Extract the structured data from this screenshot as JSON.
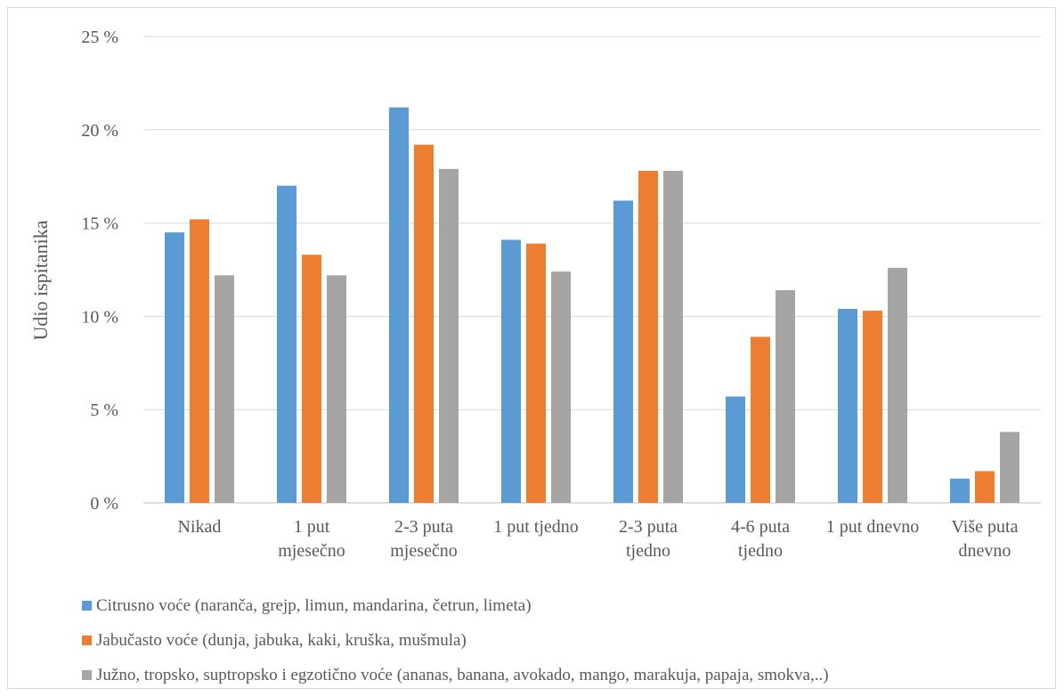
{
  "chart_data": {
    "type": "bar",
    "title": "",
    "xlabel": "",
    "ylabel": "Udio ispitanika",
    "ylim": [
      0,
      25
    ],
    "yticks": [
      0,
      5,
      10,
      15,
      20,
      25
    ],
    "ytick_labels": [
      "0 %",
      "5 %",
      "10 %",
      "15 %",
      "20 %",
      "25 %"
    ],
    "grid": true,
    "legend_position": "bottom",
    "categories": [
      [
        "Nikad"
      ],
      [
        "1 put",
        "mjesečno"
      ],
      [
        "2-3 puta",
        "mjesečno"
      ],
      [
        "1 put tjedno"
      ],
      [
        "2-3 puta",
        "tjedno"
      ],
      [
        "4-6 puta",
        "tjedno"
      ],
      [
        "1 put dnevno"
      ],
      [
        "Više puta",
        "dnevno"
      ]
    ],
    "series": [
      {
        "name": "Citrusno voće (naranča, grejp, limun, mandarina, četrun, limeta)",
        "color": "#5b9bd5",
        "values": [
          14.5,
          17.0,
          21.2,
          14.1,
          16.2,
          5.7,
          10.4,
          1.3
        ]
      },
      {
        "name": "Jabučasto voće (dunja, jabuka, kaki, kruška, mušmula)",
        "color": "#ed7d31",
        "values": [
          15.2,
          13.3,
          19.2,
          13.9,
          17.8,
          8.9,
          10.3,
          1.7
        ]
      },
      {
        "name": "Južno, tropsko, suptropsko i egzotično voće (ananas, banana, avokado, mango, marakuja, papaja, smokva,..)",
        "color": "#a5a5a5",
        "values": [
          12.2,
          12.2,
          17.9,
          12.4,
          17.8,
          11.4,
          12.6,
          3.8
        ]
      }
    ]
  }
}
